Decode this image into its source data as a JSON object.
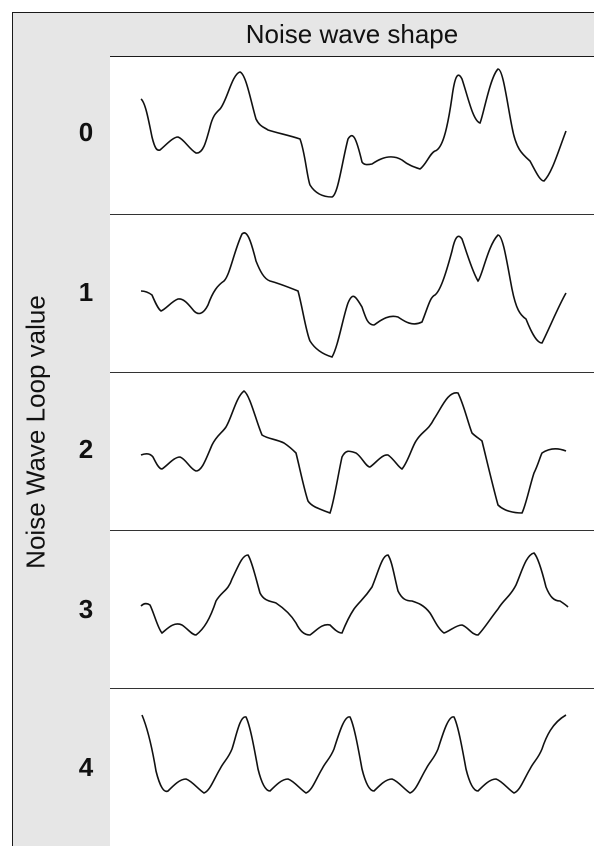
{
  "header": {
    "title": "Noise wave shape"
  },
  "axis": {
    "label": "Noise Wave Loop value"
  },
  "rows": [
    {
      "value": "0",
      "shape": "mixed-noise-a"
    },
    {
      "value": "1",
      "shape": "mixed-noise-b"
    },
    {
      "value": "2",
      "shape": "periodic-2"
    },
    {
      "value": "3",
      "shape": "periodic-3"
    },
    {
      "value": "4",
      "shape": "periodic-4"
    }
  ],
  "colors": {
    "panel": "#e6e6e6",
    "line": "#111111",
    "background": "#ffffff"
  }
}
